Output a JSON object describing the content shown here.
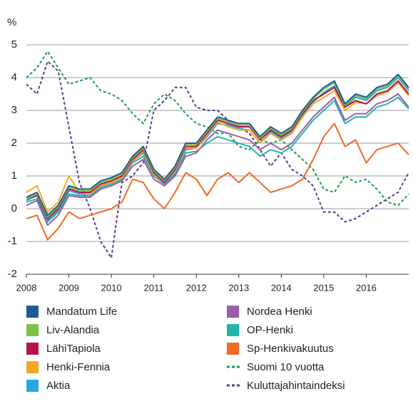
{
  "chart_data": {
    "type": "line",
    "y_label": "%",
    "x": [
      2008,
      2008.25,
      2008.5,
      2008.75,
      2009,
      2009.25,
      2009.5,
      2009.75,
      2010,
      2010.25,
      2010.5,
      2010.75,
      2011,
      2011.25,
      2011.5,
      2011.75,
      2012,
      2012.25,
      2012.5,
      2012.75,
      2013,
      2013.25,
      2013.5,
      2013.75,
      2014,
      2014.25,
      2014.5,
      2014.75,
      2015,
      2015.25,
      2015.5,
      2015.75,
      2016,
      2016.25,
      2016.5,
      2016.75,
      2017
    ],
    "xlim": [
      2008,
      2017
    ],
    "xticks": [
      2008,
      2009,
      2010,
      2011,
      2012,
      2013,
      2014,
      2015,
      2016
    ],
    "ylim": [
      -2,
      5
    ],
    "yticks": [
      -2,
      -1,
      0,
      1,
      2,
      3,
      4,
      5
    ],
    "grid": true,
    "series": [
      {
        "name": "Mandatum Life",
        "color": "#1d5a98",
        "style": "solid",
        "values": [
          0.35,
          0.5,
          -0.2,
          0.1,
          0.7,
          0.6,
          0.6,
          0.85,
          0.95,
          1.1,
          1.6,
          1.9,
          1.2,
          0.9,
          1.3,
          2.0,
          2.0,
          2.4,
          2.8,
          2.7,
          2.6,
          2.6,
          2.2,
          2.5,
          2.3,
          2.5,
          3.0,
          3.4,
          3.7,
          3.9,
          3.2,
          3.5,
          3.4,
          3.7,
          3.8,
          4.1,
          3.7
        ]
      },
      {
        "name": "Liv-Alandia",
        "color": "#7dc242",
        "style": "solid",
        "values": [
          0.3,
          0.45,
          -0.25,
          0.05,
          0.65,
          0.55,
          0.55,
          0.8,
          0.9,
          1.05,
          1.55,
          1.85,
          1.15,
          0.85,
          1.25,
          1.95,
          1.95,
          2.35,
          2.75,
          2.65,
          2.55,
          2.55,
          2.15,
          2.45,
          2.25,
          2.45,
          2.95,
          3.35,
          3.65,
          3.85,
          3.15,
          3.45,
          3.35,
          3.65,
          3.75,
          4.05,
          3.65
        ]
      },
      {
        "name": "LähiTapiola",
        "color": "#b5134b",
        "style": "solid",
        "values": [
          0.3,
          0.4,
          -0.3,
          0.0,
          0.6,
          0.5,
          0.5,
          0.75,
          0.85,
          1.0,
          1.5,
          1.8,
          1.1,
          0.8,
          1.2,
          1.9,
          1.9,
          2.3,
          2.7,
          2.6,
          2.5,
          2.5,
          2.1,
          2.4,
          2.2,
          2.4,
          2.9,
          3.3,
          3.5,
          3.7,
          3.1,
          3.3,
          3.2,
          3.5,
          3.6,
          3.9,
          3.5
        ]
      },
      {
        "name": "Henki-Fennia",
        "color": "#f7a823",
        "style": "solid",
        "values": [
          0.5,
          0.7,
          -0.1,
          0.2,
          1.0,
          0.5,
          0.45,
          0.7,
          0.8,
          0.95,
          1.45,
          1.75,
          1.05,
          0.8,
          1.15,
          1.85,
          1.85,
          2.25,
          2.65,
          2.5,
          2.4,
          2.4,
          2.0,
          2.3,
          2.1,
          2.3,
          2.8,
          3.2,
          3.4,
          3.6,
          3.0,
          3.25,
          3.2,
          3.45,
          3.55,
          3.85,
          3.45
        ]
      },
      {
        "name": "Aktia",
        "color": "#2aa6e0",
        "style": "solid",
        "values": [
          0.25,
          0.4,
          -0.35,
          -0.05,
          0.55,
          0.45,
          0.45,
          0.7,
          0.8,
          0.95,
          1.45,
          1.7,
          1.05,
          0.75,
          1.1,
          1.8,
          1.85,
          2.2,
          2.6,
          2.55,
          2.45,
          2.4,
          2.0,
          2.35,
          2.15,
          2.35,
          2.85,
          3.25,
          3.55,
          3.75,
          3.1,
          3.4,
          3.3,
          3.6,
          3.7,
          4.0,
          3.6
        ]
      },
      {
        "name": "Nordea Henki",
        "color": "#9b5fa6",
        "style": "solid",
        "values": [
          0.1,
          0.25,
          -0.5,
          -0.2,
          0.4,
          0.35,
          0.35,
          0.6,
          0.7,
          0.85,
          1.3,
          1.5,
          0.9,
          0.7,
          1.0,
          1.6,
          1.7,
          2.1,
          2.4,
          2.3,
          2.2,
          2.1,
          1.8,
          2.0,
          1.8,
          2.0,
          2.4,
          2.8,
          3.1,
          3.4,
          2.7,
          2.9,
          2.9,
          3.2,
          3.3,
          3.5,
          3.1
        ]
      },
      {
        "name": "OP-Henki",
        "color": "#22b5ae",
        "style": "solid",
        "values": [
          0.2,
          0.3,
          -0.4,
          -0.1,
          0.45,
          0.4,
          0.4,
          0.65,
          0.75,
          0.9,
          1.4,
          1.6,
          1.0,
          0.75,
          1.05,
          1.7,
          1.75,
          2.0,
          2.2,
          2.1,
          2.0,
          1.9,
          1.6,
          1.8,
          1.7,
          1.9,
          2.3,
          2.7,
          3.0,
          3.3,
          2.6,
          2.8,
          2.8,
          3.1,
          3.2,
          3.4,
          3.05
        ]
      },
      {
        "name": "Sp-Henkivakuutus",
        "color": "#f06a22",
        "style": "solid",
        "values": [
          -0.3,
          -0.2,
          -0.95,
          -0.6,
          -0.1,
          -0.3,
          -0.2,
          -0.1,
          0.0,
          0.2,
          0.9,
          0.8,
          0.3,
          0.0,
          0.5,
          1.1,
          0.9,
          0.4,
          0.9,
          1.1,
          0.8,
          1.1,
          0.8,
          0.5,
          0.6,
          0.7,
          0.9,
          1.5,
          2.2,
          2.6,
          1.9,
          2.1,
          1.4,
          1.8,
          1.9,
          2.0,
          1.65
        ]
      },
      {
        "name": "Suomi 10 vuotta",
        "color": "#1a9d49",
        "style": "dashed",
        "values": [
          4.0,
          4.3,
          4.8,
          4.3,
          3.8,
          3.9,
          4.0,
          3.6,
          3.5,
          3.3,
          2.9,
          2.6,
          3.2,
          3.5,
          3.3,
          2.9,
          2.6,
          2.5,
          2.3,
          2.3,
          1.9,
          1.8,
          2.1,
          2.0,
          2.1,
          1.8,
          1.5,
          1.2,
          0.6,
          0.5,
          1.0,
          0.8,
          0.9,
          0.6,
          0.2,
          0.1,
          0.45
        ]
      },
      {
        "name": "Kuluttajahintaindeksi",
        "color": "#5b3a8c",
        "style": "dashed",
        "values": [
          3.8,
          3.5,
          4.5,
          4.2,
          2.5,
          0.8,
          0.0,
          -1.0,
          -1.5,
          0.8,
          1.0,
          1.4,
          3.0,
          3.3,
          3.7,
          3.7,
          3.1,
          3.0,
          3.0,
          2.7,
          2.5,
          2.3,
          1.8,
          1.3,
          1.7,
          1.2,
          1.0,
          0.7,
          -0.1,
          -0.1,
          -0.4,
          -0.3,
          -0.1,
          0.1,
          0.3,
          0.5,
          1.1
        ]
      }
    ]
  }
}
